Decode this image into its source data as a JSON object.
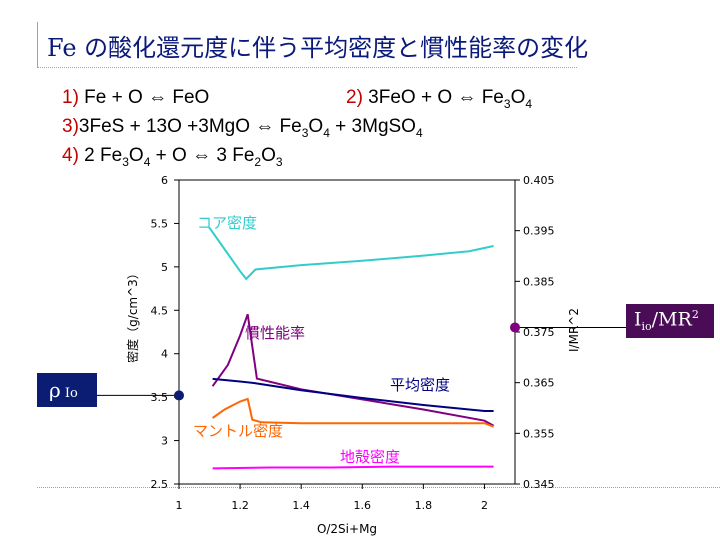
{
  "title_fe": "Fe",
  "title_rest": " の酸化還元度に伴う平均密度と慣性能率の変化",
  "equations": [
    {
      "num": "1)",
      "text": " Fe + O ⇔ FeO"
    },
    {
      "num": "2)",
      "text": "  3FeO + O ⇔ Fe",
      "sub1": "3",
      "text2": "O",
      "sub2": "4"
    },
    {
      "num": "3)",
      "text": "3FeS + 13O +3MgO ⇔ Fe",
      "sub1": "3",
      "text2": "O",
      "sub2": "4",
      "text3": " + 3MgSO",
      "sub3": "4"
    },
    {
      "num": "4)",
      "text": " 2 Fe",
      "sub1": "3",
      "text2": "O",
      "sub2": "4",
      "text3": " + O ⇔ 3 Fe",
      "sub3": "2",
      "text4": "O",
      "sub4": "3"
    }
  ],
  "boxes": {
    "rho_main": "ρ",
    "rho_sub": "Io",
    "iomr_main": "I",
    "iomr_sub": "io",
    "iomr_mid": "/MR",
    "iomr_sup": "2"
  },
  "colors": {
    "core": "#33cccc",
    "inertia": "#800080",
    "mean": "#000080",
    "mantle": "#ff6600",
    "crust": "#ff00ff",
    "rho_box": "#0b1d72",
    "iomr_box": "#4a0c57"
  },
  "chart_data": {
    "type": "line",
    "xlabel": "O/2Si+Mg",
    "ylabel": "密度（g/cm^3）",
    "y2label": "I/MR^2",
    "xlim": [
      1,
      2.1
    ],
    "ylim": [
      2.5,
      6
    ],
    "y2lim": [
      0.345,
      0.405
    ],
    "x_ticks": [
      "1",
      "1.2",
      "1.4",
      "1.6",
      "1.8",
      "2"
    ],
    "y_ticks": [
      "2.5",
      "3",
      "3.5",
      "4",
      "4.5",
      "5",
      "5.5",
      "6"
    ],
    "y2_ticks": [
      "0.345",
      "0.355",
      "0.365",
      "0.375",
      "0.385",
      "0.395",
      "0.405"
    ],
    "grid": false,
    "series": [
      {
        "name": "コア密度",
        "axis": "left",
        "color": "#33cccc",
        "x": [
          1.1,
          1.15,
          1.2,
          1.22,
          1.25,
          1.4,
          1.6,
          1.8,
          1.95,
          2.03
        ],
        "y": [
          5.45,
          5.2,
          4.95,
          4.86,
          4.97,
          5.02,
          5.07,
          5.13,
          5.18,
          5.24
        ]
      },
      {
        "name": "慣性能率",
        "axis": "right",
        "color": "#800080",
        "x": [
          1.11,
          1.16,
          1.2,
          1.225,
          1.255,
          1.4,
          1.6,
          1.8,
          2.0,
          2.03
        ],
        "y": [
          0.3643,
          0.3685,
          0.3743,
          0.3785,
          0.3658,
          0.3637,
          0.3617,
          0.3597,
          0.3575,
          0.3565
        ]
      },
      {
        "name": "平均密度",
        "axis": "left",
        "color": "#000080",
        "x": [
          1.11,
          1.2,
          1.25,
          1.4,
          1.6,
          1.8,
          2.0,
          2.03
        ],
        "y": [
          3.71,
          3.68,
          3.66,
          3.58,
          3.49,
          3.41,
          3.34,
          3.34
        ]
      },
      {
        "name": "マントル密度",
        "axis": "left",
        "color": "#ff6600",
        "x": [
          1.11,
          1.15,
          1.2,
          1.225,
          1.24,
          1.27,
          1.4,
          1.6,
          1.8,
          2.0,
          2.03
        ],
        "y": [
          3.26,
          3.36,
          3.45,
          3.48,
          3.24,
          3.21,
          3.2,
          3.2,
          3.2,
          3.2,
          3.16
        ]
      },
      {
        "name": "地殻密度",
        "axis": "left",
        "color": "#ff00ff",
        "x": [
          1.11,
          1.3,
          1.5,
          1.7,
          1.9,
          2.03
        ],
        "y": [
          2.68,
          2.69,
          2.69,
          2.7,
          2.7,
          2.7
        ]
      }
    ],
    "markers": [
      {
        "axis": "left",
        "x": 1.0,
        "y": 3.52,
        "color": "#0b1d72"
      },
      {
        "axis": "right",
        "x": 2.1,
        "y": 0.3759,
        "color": "#800080"
      }
    ]
  }
}
